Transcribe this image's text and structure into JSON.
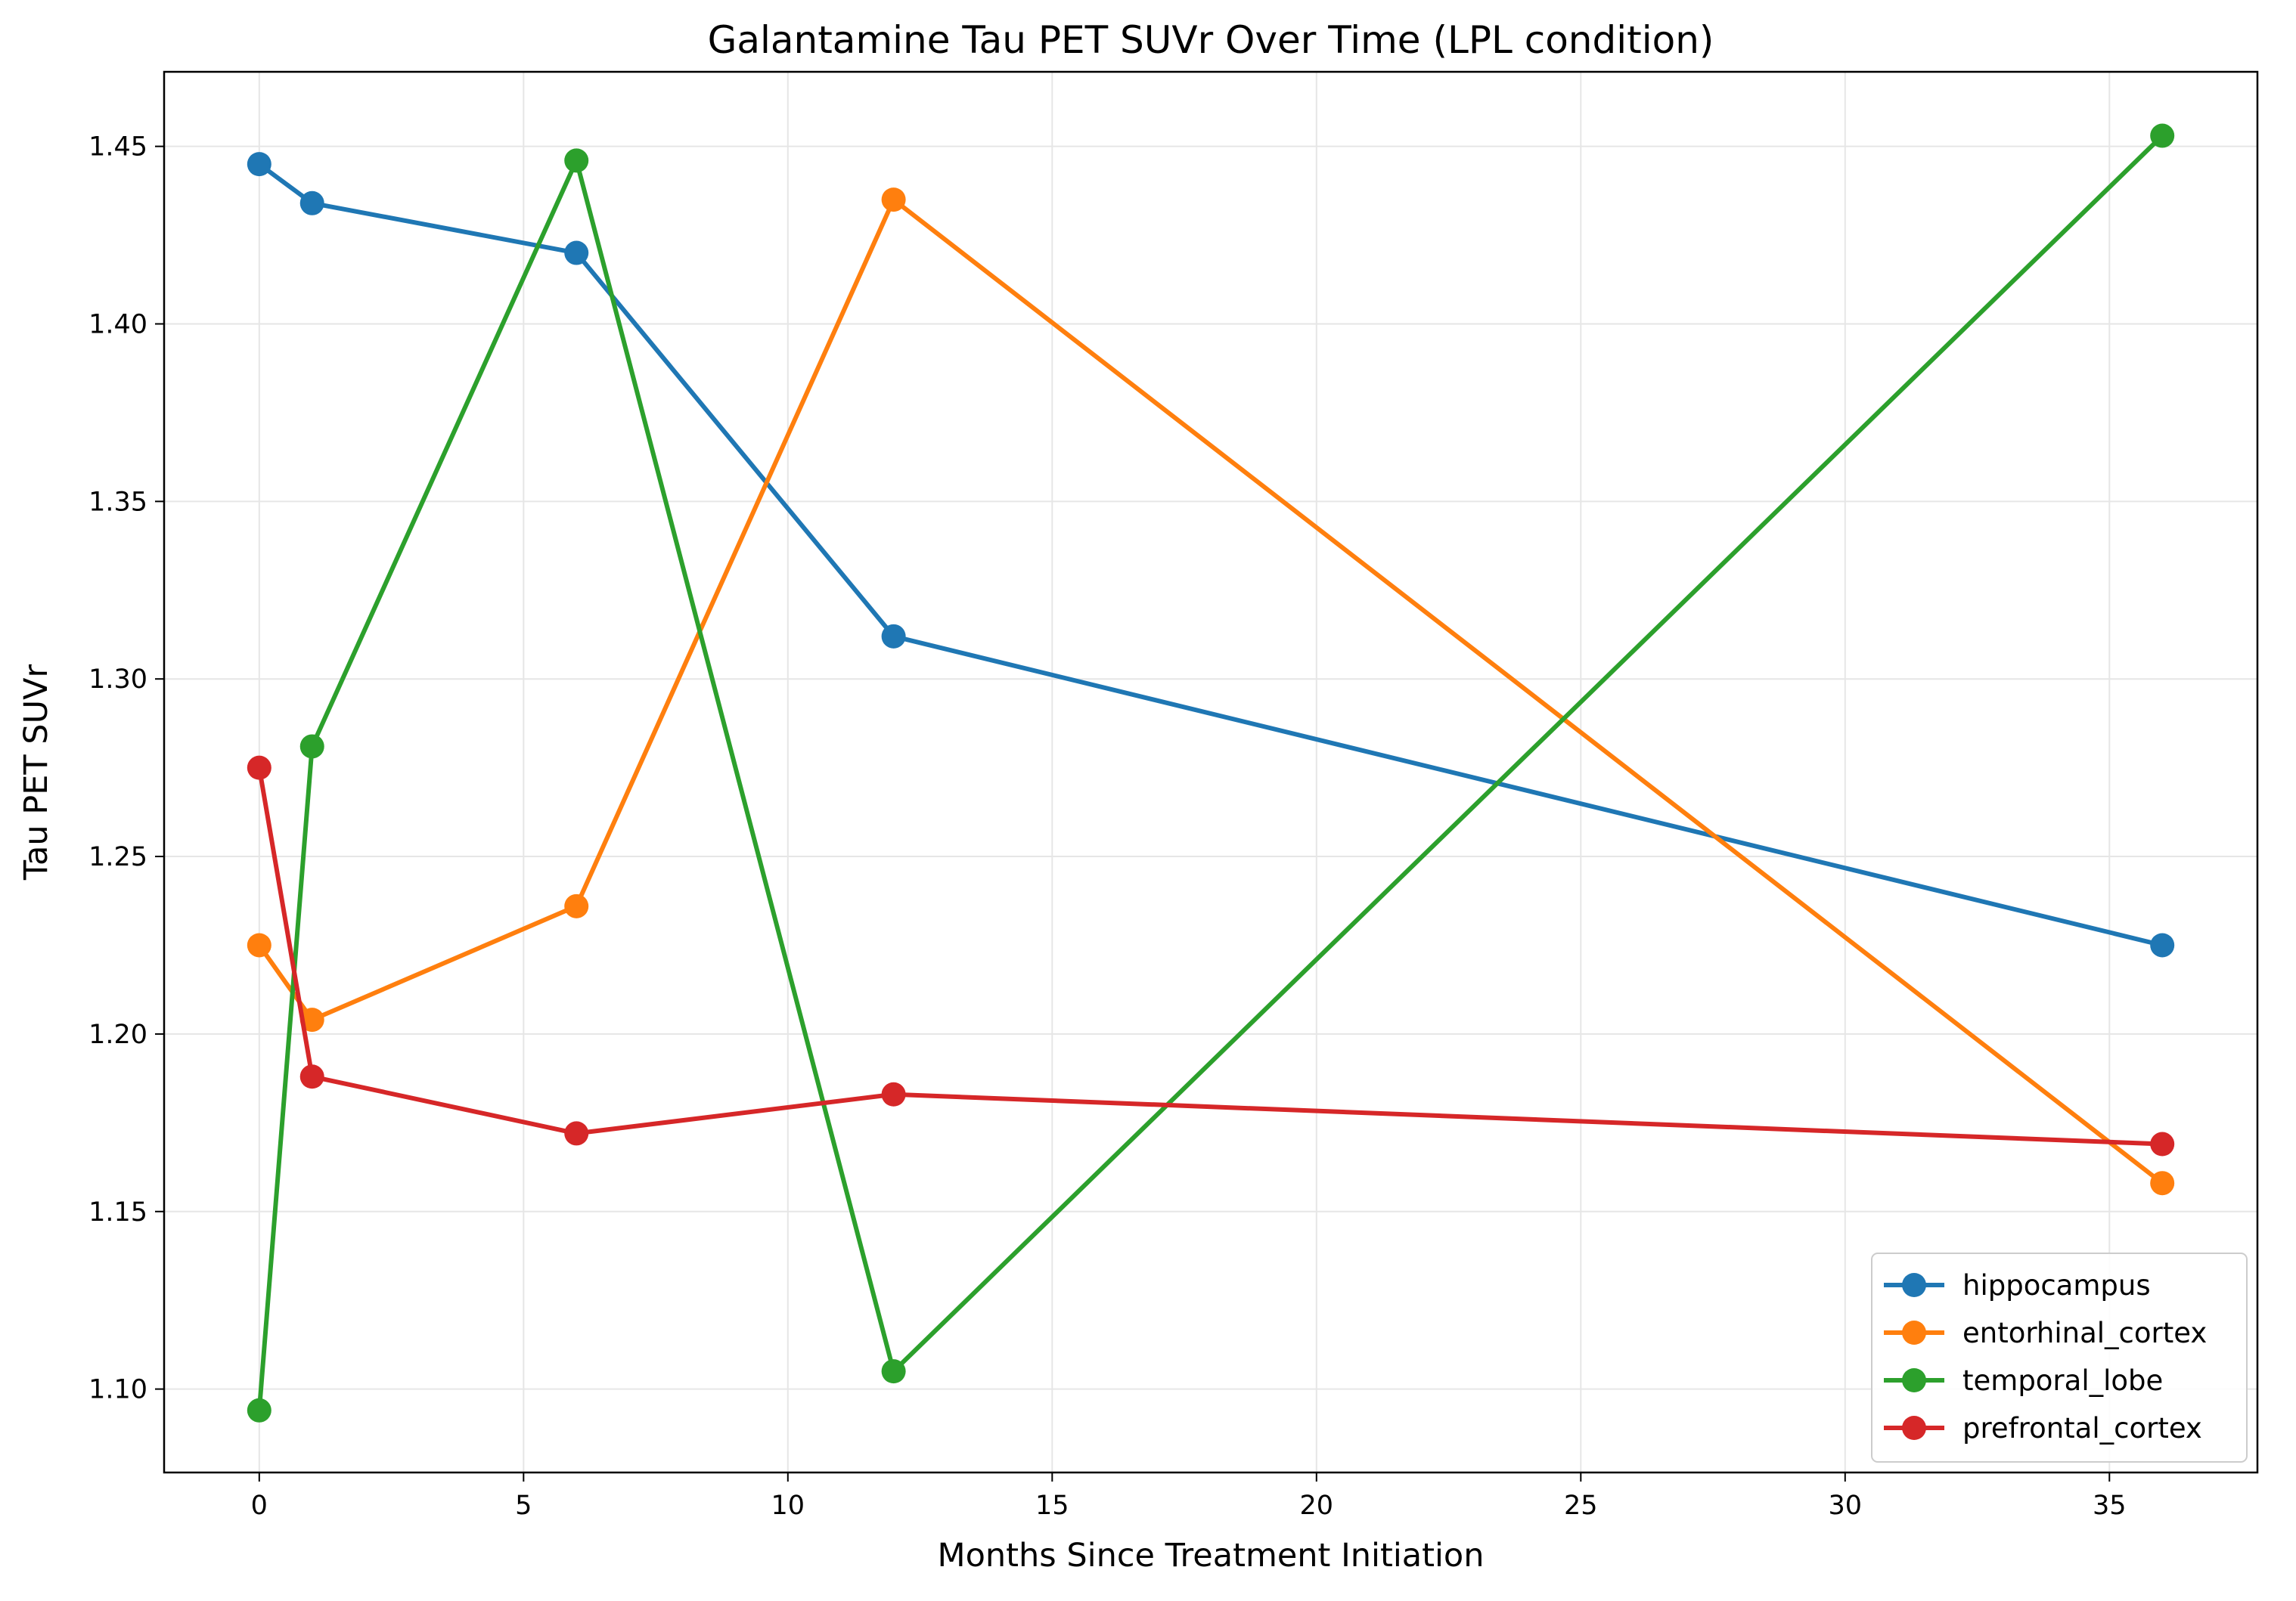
{
  "chart_data": {
    "type": "line",
    "title": "Galantamine Tau PET SUVr Over Time (LPL condition)",
    "xlabel": "Months Since Treatment Initiation",
    "ylabel": "Tau PET SUVr",
    "xlim": [
      -1.8,
      37.8
    ],
    "ylim": [
      1.0765,
      1.471
    ],
    "xticks": [
      0,
      5,
      10,
      15,
      20,
      25,
      30,
      35
    ],
    "xtick_labels": [
      "0",
      "5",
      "10",
      "15",
      "20",
      "25",
      "30",
      "35"
    ],
    "yticks": [
      1.1,
      1.15,
      1.2,
      1.25,
      1.3,
      1.35,
      1.4,
      1.45
    ],
    "ytick_labels": [
      "1.10",
      "1.15",
      "1.20",
      "1.25",
      "1.30",
      "1.35",
      "1.40",
      "1.45"
    ],
    "grid": true,
    "legend_position": "lower-right",
    "x": [
      0,
      1,
      6,
      12,
      36
    ],
    "series": [
      {
        "name": "hippocampus",
        "color": "#1f77b4",
        "values": [
          1.445,
          1.434,
          1.42,
          1.312,
          1.225
        ]
      },
      {
        "name": "entorhinal_cortex",
        "color": "#ff7f0e",
        "values": [
          1.225,
          1.204,
          1.236,
          1.435,
          1.158
        ]
      },
      {
        "name": "temporal_lobe",
        "color": "#2ca02c",
        "values": [
          1.094,
          1.281,
          1.446,
          1.105,
          1.453
        ]
      },
      {
        "name": "prefrontal_cortex",
        "color": "#d62728",
        "values": [
          1.275,
          1.188,
          1.172,
          1.183,
          1.169
        ]
      }
    ]
  }
}
